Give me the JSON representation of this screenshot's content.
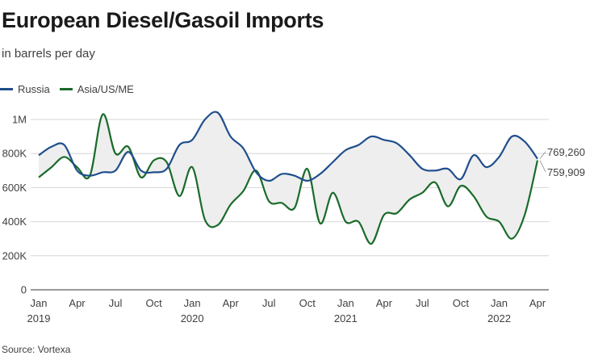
{
  "title": "European Diesel/Gasoil Imports",
  "subtitle": "in barrels per day",
  "source": "Source: Vortexa",
  "colors": {
    "russia": "#1f4e8c",
    "asia": "#1a6b2a",
    "fill": "#eeeeee",
    "grid": "#d6d6d6",
    "axis": "#333333",
    "text": "#404040"
  },
  "chart_data": {
    "type": "line",
    "title": "European Diesel/Gasoil Imports",
    "ylabel": "in barrels per day",
    "xlabel": "",
    "ylim": [
      0,
      1000000
    ],
    "grid": true,
    "legend_position": "top-left",
    "y_ticks": [
      {
        "value": 0,
        "label": "0"
      },
      {
        "value": 200000,
        "label": "200K"
      },
      {
        "value": 400000,
        "label": "400K"
      },
      {
        "value": 600000,
        "label": "600K"
      },
      {
        "value": 800000,
        "label": "800K"
      },
      {
        "value": 1000000,
        "label": "1M"
      }
    ],
    "x_ticks": [
      {
        "index": 0,
        "label": "Jan",
        "year": "2019"
      },
      {
        "index": 3,
        "label": "Apr",
        "year": ""
      },
      {
        "index": 6,
        "label": "Jul",
        "year": ""
      },
      {
        "index": 9,
        "label": "Oct",
        "year": ""
      },
      {
        "index": 12,
        "label": "Jan",
        "year": "2020"
      },
      {
        "index": 15,
        "label": "Apr",
        "year": ""
      },
      {
        "index": 18,
        "label": "Jul",
        "year": ""
      },
      {
        "index": 21,
        "label": "Oct",
        "year": ""
      },
      {
        "index": 24,
        "label": "Jan",
        "year": "2021"
      },
      {
        "index": 27,
        "label": "Apr",
        "year": ""
      },
      {
        "index": 30,
        "label": "Jul",
        "year": ""
      },
      {
        "index": 33,
        "label": "Oct",
        "year": ""
      },
      {
        "index": 36,
        "label": "Jan",
        "year": "2022"
      },
      {
        "index": 39,
        "label": "Apr",
        "year": ""
      }
    ],
    "categories": [
      "Jan 2019",
      "Feb 2019",
      "Mar 2019",
      "Apr 2019",
      "May 2019",
      "Jun 2019",
      "Jul 2019",
      "Aug 2019",
      "Sep 2019",
      "Oct 2019",
      "Nov 2019",
      "Dec 2019",
      "Jan 2020",
      "Feb 2020",
      "Mar 2020",
      "Apr 2020",
      "May 2020",
      "Jun 2020",
      "Jul 2020",
      "Aug 2020",
      "Sep 2020",
      "Oct 2020",
      "Nov 2020",
      "Dec 2020",
      "Jan 2021",
      "Feb 2021",
      "Mar 2021",
      "Apr 2021",
      "May 2021",
      "Jun 2021",
      "Jul 2021",
      "Aug 2021",
      "Sep 2021",
      "Oct 2021",
      "Nov 2021",
      "Dec 2021",
      "Jan 2022",
      "Feb 2022",
      "Mar 2022",
      "Apr 2022"
    ],
    "series": [
      {
        "name": "Russia",
        "color": "#1f4e8c",
        "values": [
          790000,
          840000,
          850000,
          700000,
          670000,
          690000,
          700000,
          810000,
          700000,
          690000,
          710000,
          850000,
          880000,
          1000000,
          1040000,
          900000,
          830000,
          690000,
          640000,
          680000,
          670000,
          640000,
          680000,
          750000,
          820000,
          850000,
          900000,
          880000,
          860000,
          790000,
          710000,
          700000,
          710000,
          650000,
          790000,
          720000,
          780000,
          900000,
          870000,
          769260
        ]
      },
      {
        "name": "Asia/US/ME",
        "color": "#1a6b2a",
        "values": [
          660000,
          720000,
          780000,
          720000,
          670000,
          1030000,
          800000,
          840000,
          660000,
          760000,
          750000,
          550000,
          720000,
          410000,
          380000,
          500000,
          580000,
          700000,
          520000,
          510000,
          480000,
          710000,
          390000,
          570000,
          400000,
          400000,
          270000,
          440000,
          450000,
          530000,
          570000,
          630000,
          490000,
          610000,
          550000,
          430000,
          400000,
          300000,
          440000,
          759909
        ]
      }
    ],
    "end_labels": {
      "russia": "769,260",
      "asia": "759,909"
    }
  }
}
